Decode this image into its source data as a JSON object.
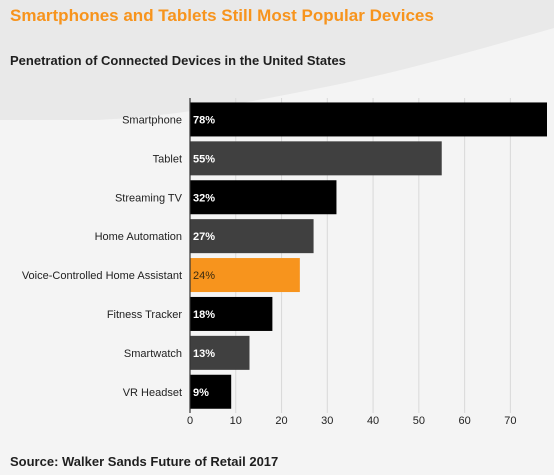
{
  "header": {
    "title": "Smartphones and Tablets Still Most Popular Devices",
    "subtitle": "Penetration of Connected Devices in the United States"
  },
  "footer": {
    "source": "Source: Walker Sands Future of Retail 2017"
  },
  "colors": {
    "title": "#f7941d",
    "highlight": "#f7941d",
    "bar_dark": "#000000",
    "bar_gray": "#404040",
    "grid": "#d9d9d9",
    "text": "#222222"
  },
  "chart_data": {
    "type": "bar",
    "orientation": "horizontal",
    "title": "Penetration of Connected Devices in the United States",
    "categories": [
      "Smartphone",
      "Tablet",
      "Streaming TV",
      "Home Automation",
      "Voice-Controlled Home Assistant",
      "Fitness Tracker",
      "Smartwatch",
      "VR Headset"
    ],
    "values": [
      78,
      55,
      32,
      27,
      24,
      18,
      13,
      9
    ],
    "data_labels": [
      "78%",
      "55%",
      "32%",
      "27%",
      "24%",
      "18%",
      "13%",
      "9%"
    ],
    "bar_colors": [
      "#000000",
      "#404040",
      "#000000",
      "#404040",
      "#f7941d",
      "#000000",
      "#404040",
      "#000000"
    ],
    "xlim": [
      0,
      78
    ],
    "xticks": [
      0,
      10,
      20,
      30,
      40,
      50,
      60,
      70
    ],
    "xtick_labels": [
      "0",
      "10",
      "20",
      "30",
      "40",
      "50",
      "60",
      "70"
    ],
    "grid": true,
    "legend": "none"
  }
}
